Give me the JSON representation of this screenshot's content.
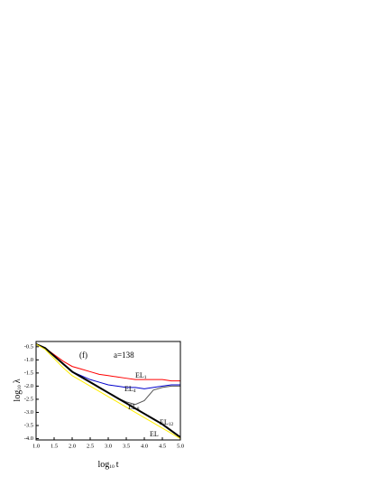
{
  "chart_data": {
    "type": "line",
    "annotations": [
      "(f)",
      "a=138"
    ],
    "y_label": {
      "text": "log",
      "subscript": "10",
      "symbol": "λ"
    },
    "x_label": {
      "text": "log",
      "subscript": "10",
      "symbol": "t"
    },
    "x": [
      1,
      1.25,
      1.5,
      1.75,
      2,
      2.25,
      2.5,
      2.75,
      3,
      3.25,
      3.5,
      3.75,
      4,
      4.25,
      4.5,
      4.75,
      5
    ],
    "series": [
      {
        "label": "EL",
        "subscript": "1",
        "color": "#ff0000",
        "values": [
          -0.4,
          -0.55,
          -0.8,
          -1.05,
          -1.25,
          -1.35,
          -1.45,
          -1.55,
          -1.6,
          -1.65,
          -1.7,
          -1.75,
          -1.75,
          -1.75,
          -1.75,
          -1.8,
          -1.8
        ]
      },
      {
        "label": "EL",
        "subscript": "4",
        "color": "#0000cc",
        "values": [
          -0.4,
          -0.55,
          -0.85,
          -1.15,
          -1.45,
          -1.6,
          -1.75,
          -1.85,
          -1.95,
          -2.0,
          -2.05,
          -2.05,
          -2.1,
          -2.05,
          -2.0,
          -1.95,
          -1.95
        ]
      },
      {
        "label": "EL",
        "subscript": "8",
        "color": "#555555",
        "values": [
          -0.4,
          -0.55,
          -0.85,
          -1.15,
          -1.45,
          -1.65,
          -1.85,
          -2.05,
          -2.25,
          -2.45,
          -2.6,
          -2.7,
          -2.55,
          -2.15,
          -2.05,
          -2.0,
          -2.0
        ]
      },
      {
        "label": "EL",
        "subscript": "12",
        "color": "#000000",
        "values": [
          -0.4,
          -0.55,
          -0.85,
          -1.15,
          -1.45,
          -1.65,
          -1.85,
          -2.05,
          -2.25,
          -2.45,
          -2.65,
          -2.85,
          -3.05,
          -3.25,
          -3.45,
          -3.7,
          -3.95
        ]
      },
      {
        "label": "EL",
        "color": "#ffee00",
        "values": [
          -0.4,
          -0.6,
          -0.95,
          -1.3,
          -1.6,
          -1.8,
          -2.0,
          -2.2,
          -2.4,
          -2.6,
          -2.8,
          -3.0,
          -3.2,
          -3.4,
          -3.6,
          -3.8,
          -4.0
        ]
      }
    ],
    "xlim": [
      1,
      5
    ],
    "xticks": [
      {
        "value": 1,
        "label": "1.0"
      },
      1.5,
      {
        "value": 2,
        "label": "2.0"
      },
      2.5,
      {
        "value": 3,
        "label": "3.0"
      },
      3.5,
      {
        "value": 4,
        "label": "4.0"
      },
      4.5,
      {
        "value": 5,
        "label": "5.0"
      }
    ],
    "ylim": [
      -0.3,
      -4.05
    ],
    "yticks": [
      -0.5,
      {
        "value": -1,
        "label": "-1.0"
      },
      -1.5,
      {
        "value": -2,
        "label": "-2.0"
      },
      -2.5,
      {
        "value": -3,
        "label": "-3.0"
      },
      -3.5,
      {
        "value": -4,
        "label": "-4.0"
      }
    ]
  }
}
